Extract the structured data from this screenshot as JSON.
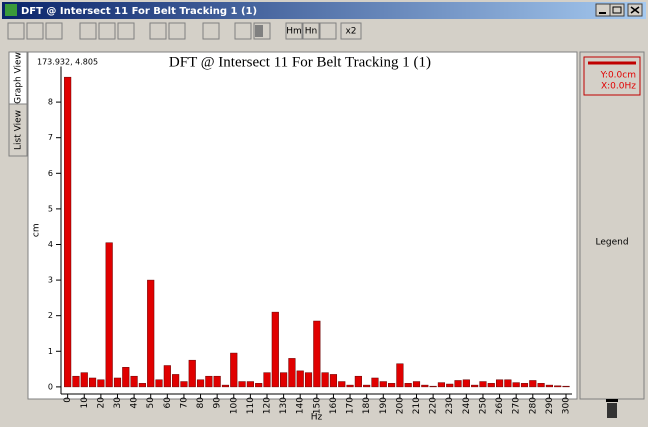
{
  "window": {
    "title": "DFT @ Intersect 11 For Belt Tracking 1 (1)"
  },
  "toolbar": {
    "buttons": [
      "Hm",
      "Hn",
      "x2"
    ]
  },
  "tabs": [
    "Graph View",
    "List View"
  ],
  "legend_panel": {
    "y_readout": "Y:0.0cm",
    "x_readout": "X:0.0Hz",
    "label": "Legend"
  },
  "chart_data": {
    "type": "bar",
    "title": "DFT @ Intersect 11 For Belt Tracking 1 (1)",
    "cursor_readout": "173.932, 4.805",
    "xlabel": "Hz",
    "ylabel": "cm",
    "color": "#e00000",
    "x": [
      0,
      5,
      10,
      15,
      20,
      25,
      30,
      35,
      40,
      45,
      50,
      55,
      60,
      65,
      70,
      75,
      80,
      85,
      90,
      95,
      100,
      105,
      110,
      115,
      120,
      125,
      130,
      135,
      140,
      145,
      150,
      155,
      160,
      165,
      170,
      175,
      180,
      185,
      190,
      195,
      200,
      205,
      210,
      215,
      220,
      225,
      230,
      235,
      240,
      245,
      250,
      255,
      260,
      265,
      270,
      275,
      280,
      285,
      290,
      295,
      300
    ],
    "values": [
      8.7,
      0.3,
      0.4,
      0.25,
      0.2,
      4.05,
      0.25,
      0.55,
      0.3,
      0.1,
      3.0,
      0.2,
      0.6,
      0.35,
      0.15,
      0.75,
      0.2,
      0.3,
      0.3,
      0.05,
      0.95,
      0.15,
      0.15,
      0.1,
      0.4,
      2.1,
      0.4,
      0.8,
      0.45,
      0.4,
      1.85,
      0.4,
      0.35,
      0.15,
      0.05,
      0.3,
      0.05,
      0.25,
      0.15,
      0.1,
      0.65,
      0.1,
      0.15,
      0.05,
      0.02,
      0.12,
      0.08,
      0.18,
      0.2,
      0.05,
      0.15,
      0.1,
      0.2,
      0.2,
      0.12,
      0.1,
      0.18,
      0.1,
      0.05,
      0.03,
      0.02
    ],
    "xlim": [
      -4,
      303.6
    ],
    "xticks": [
      0,
      10,
      20,
      30,
      40,
      50,
      60,
      70,
      80,
      90,
      100,
      110,
      120,
      130,
      140,
      150,
      160,
      170,
      180,
      190,
      200,
      210,
      220,
      230,
      240,
      250,
      260,
      270,
      280,
      290,
      300
    ],
    "ylim": [
      -0.2,
      9
    ],
    "yticks": [
      0,
      1,
      2,
      3,
      4,
      5,
      6,
      7,
      8
    ]
  }
}
